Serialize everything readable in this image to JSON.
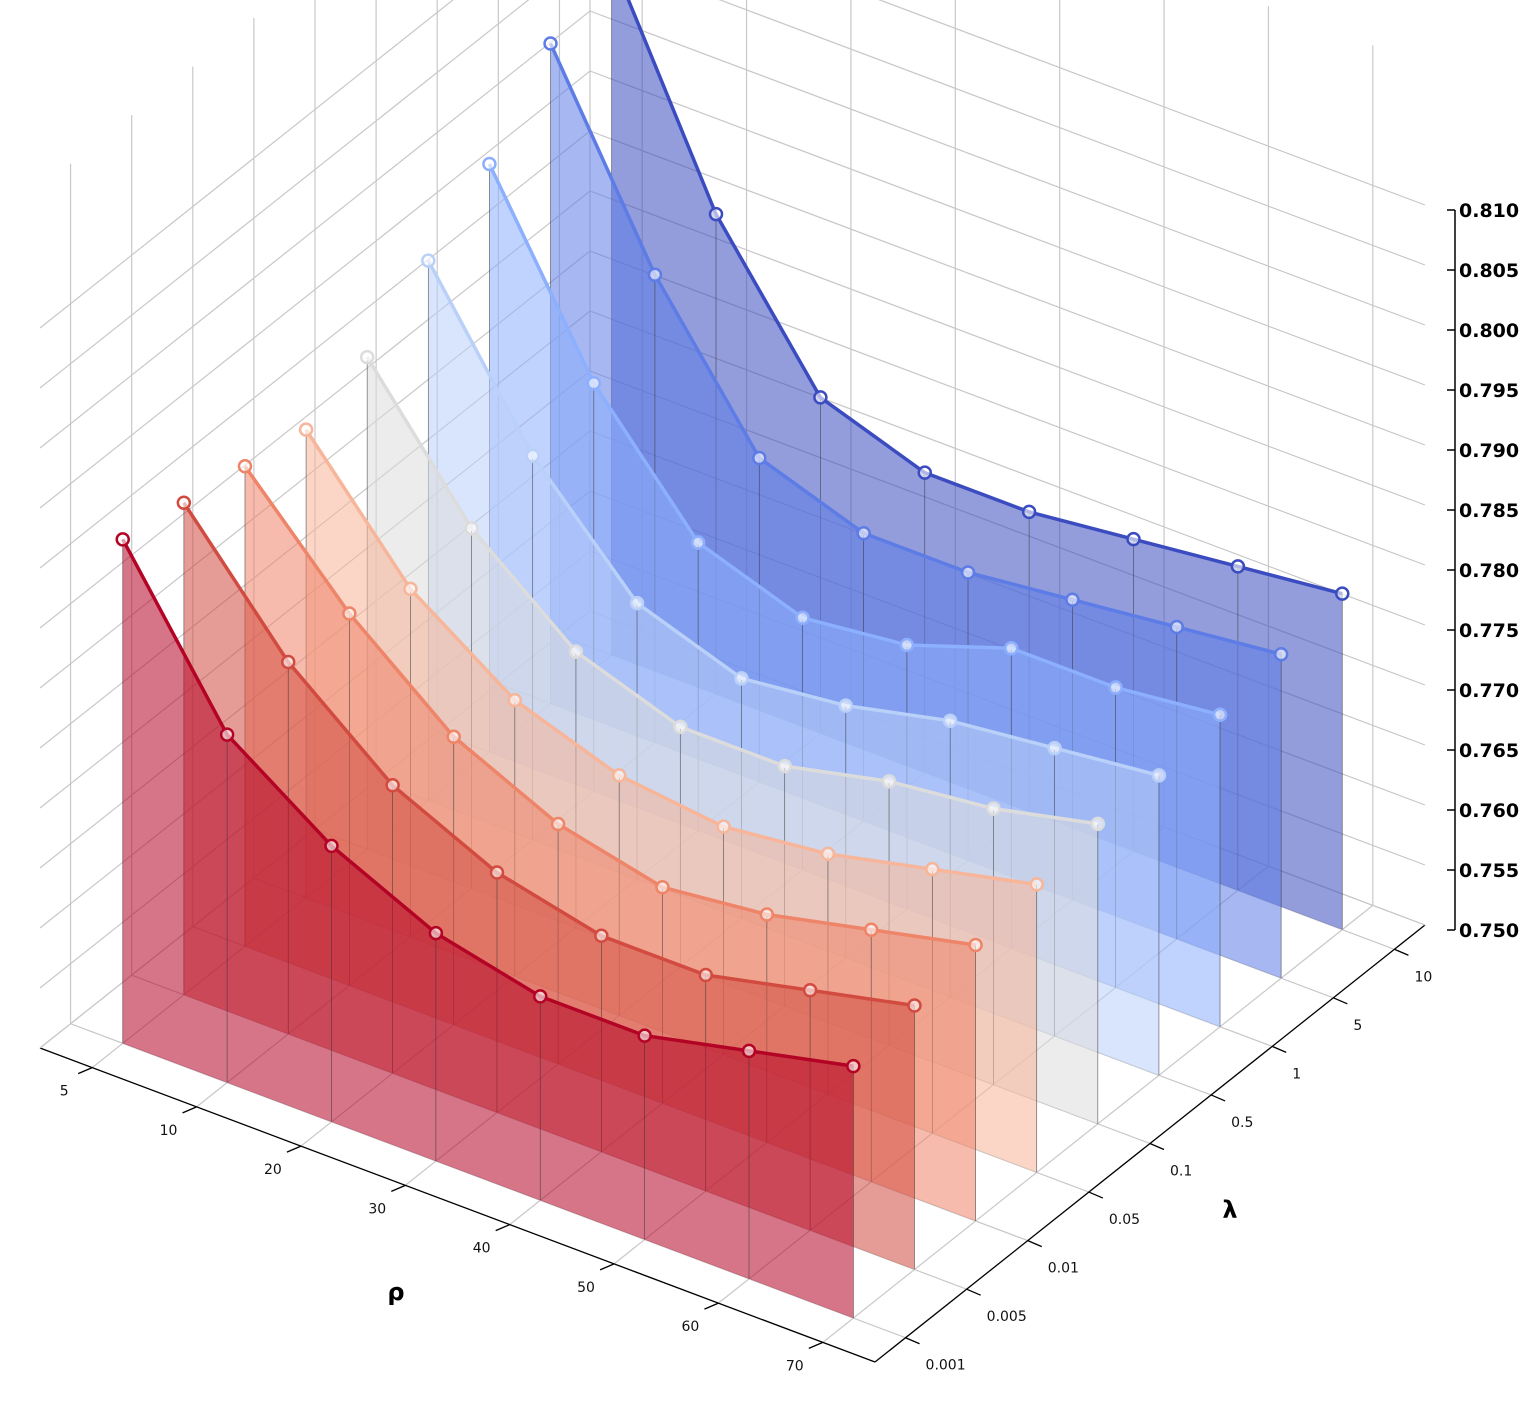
{
  "chart_data": {
    "type": "3d-line-waterfall",
    "title": "",
    "xlabel": "ρ",
    "ylabel": "λ",
    "zlabel": "",
    "x_ticks": [
      "70",
      "60",
      "50",
      "40",
      "30",
      "20",
      "10",
      "5"
    ],
    "y_ticks": [
      "0.001",
      "0.005",
      "0.01",
      "0.05",
      "0.1",
      "0.5",
      "1",
      "5",
      "10"
    ],
    "z_ticks": [
      "0.750",
      "0.755",
      "0.760",
      "0.765",
      "0.770",
      "0.775",
      "0.780",
      "0.785",
      "0.790",
      "0.795",
      "0.800",
      "0.805",
      "0.810"
    ],
    "zlim": [
      0.75,
      0.81
    ],
    "grid": true,
    "series": [
      {
        "lambda": "0.001",
        "color": "#b40426",
        "values": [
          0.771,
          0.769,
          0.767,
          0.767,
          0.769,
          0.773,
          0.779,
          0.792
        ]
      },
      {
        "lambda": "0.005",
        "color": "#d24b40",
        "values": [
          0.772,
          0.77,
          0.768,
          0.768,
          0.77,
          0.774,
          0.781,
          0.791
        ]
      },
      {
        "lambda": "0.01",
        "color": "#ee8468",
        "values": [
          0.773,
          0.771,
          0.769,
          0.768,
          0.77,
          0.774,
          0.781,
          0.79
        ]
      },
      {
        "lambda": "0.05",
        "color": "#f7b599",
        "values": [
          0.774,
          0.772,
          0.77,
          0.769,
          0.77,
          0.773,
          0.779,
          0.789
        ]
      },
      {
        "lambda": "0.1",
        "color": "#dddcdc",
        "values": [
          0.775,
          0.773,
          0.772,
          0.77,
          0.77,
          0.773,
          0.78,
          0.791
        ]
      },
      {
        "lambda": "0.5",
        "color": "#b9d0f9",
        "values": [
          0.775,
          0.774,
          0.773,
          0.771,
          0.77,
          0.773,
          0.782,
          0.795
        ]
      },
      {
        "lambda": "1",
        "color": "#8caffe",
        "values": [
          0.776,
          0.775,
          0.775,
          0.772,
          0.771,
          0.774,
          0.784,
          0.799
        ]
      },
      {
        "lambda": "5",
        "color": "#5d7ce6",
        "values": [
          0.777,
          0.776,
          0.775,
          0.774,
          0.774,
          0.777,
          0.789,
          0.805
        ]
      },
      {
        "lambda": "10",
        "color": "#3b4cc0",
        "values": [
          0.778,
          0.777,
          0.776,
          0.775,
          0.775,
          0.778,
          0.79,
          0.808
        ]
      }
    ]
  }
}
